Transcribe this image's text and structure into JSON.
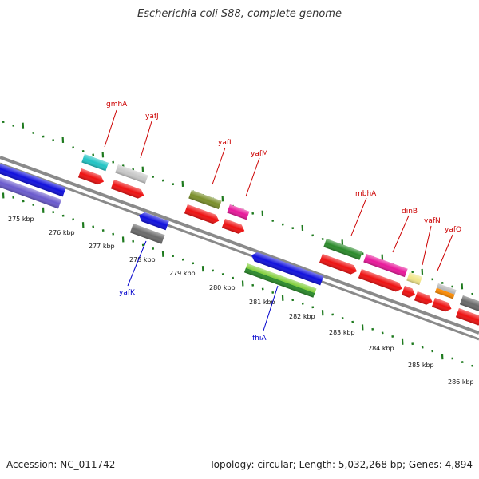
{
  "title": "Escherichia coli S88, complete genome",
  "footer": {
    "accession": "Accession: NC_011742",
    "summary": "Topology: circular; Length: 5,032,268 bp; Genes: 4,894"
  },
  "colors": {
    "backbone": "#8a8a8a",
    "tick": "#1e7a1e",
    "forward_label": "#cc0000",
    "reverse_label": "#0000cc",
    "orf": "#ee1111"
  },
  "kbp_ticks": [
    "275 kbp",
    "276 kbp",
    "277 kbp",
    "278 kbp",
    "279 kbp",
    "280 kbp",
    "281 kbp",
    "282 kbp",
    "283 kbp",
    "284 kbp",
    "285 kbp",
    "286 kbp"
  ],
  "forward_genes": [
    {
      "name": "gmhA",
      "color": "#22c4c4"
    },
    {
      "name": "yafJ",
      "color": "#c8c8c8"
    },
    {
      "name": "yafL",
      "color": "#7a8f2a"
    },
    {
      "name": "yafM",
      "color": "#e8189a"
    },
    {
      "name": "mbhA",
      "color": "#2a8a2a"
    },
    {
      "name": "dinB",
      "color": "#e8189a"
    },
    {
      "name": "yafN",
      "color": "#f2e68a"
    },
    {
      "name": "yafO",
      "color": "#b0b0b0"
    }
  ],
  "reverse_genes": [
    {
      "name": "yafK",
      "color": "#1010dd"
    },
    {
      "name": "fhiA",
      "color": "#1010dd"
    }
  ]
}
